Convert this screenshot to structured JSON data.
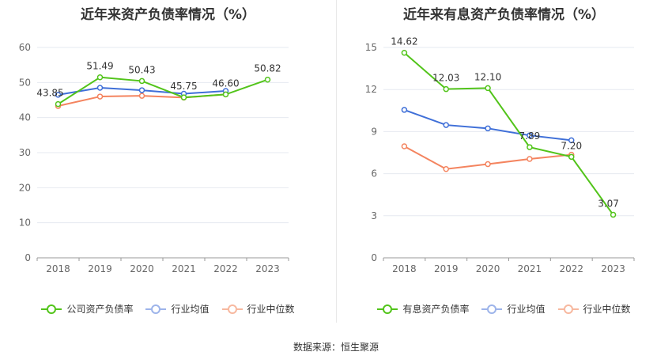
{
  "source": "数据来源：恒生聚源",
  "colors": {
    "company": "#52c41a",
    "avg": "#3f6fd8",
    "median": "#f4845f"
  },
  "chart_data": [
    {
      "type": "line",
      "title": "近年来资产负债率情况（%）",
      "categories": [
        "2018",
        "2019",
        "2020",
        "2021",
        "2022",
        "2023"
      ],
      "yticks": [
        "0",
        "10",
        "20",
        "30",
        "40",
        "50",
        "60"
      ],
      "ylim": [
        0,
        60
      ],
      "series": [
        {
          "name": "公司资产负债率",
          "key": "company",
          "values": [
            43.85,
            51.49,
            50.43,
            45.75,
            46.6,
            50.82
          ],
          "labels": [
            "43.85",
            "51.49",
            "50.43",
            "45.75",
            "46.60",
            "50.82"
          ]
        },
        {
          "name": "行业均值",
          "key": "avg",
          "values": [
            46.5,
            48.5,
            47.8,
            46.8,
            47.6,
            null
          ]
        },
        {
          "name": "行业中位数",
          "key": "median",
          "values": [
            43.3,
            46.0,
            46.2,
            45.7,
            46.6,
            null
          ]
        }
      ]
    },
    {
      "type": "line",
      "title": "近年来有息资产负债率情况（%）",
      "categories": [
        "2018",
        "2019",
        "2020",
        "2021",
        "2022",
        "2023"
      ],
      "yticks": [
        "0",
        "3",
        "6",
        "9",
        "12",
        "15"
      ],
      "ylim": [
        0,
        15
      ],
      "series": [
        {
          "name": "有息资产负债率",
          "key": "company",
          "values": [
            14.62,
            12.03,
            12.1,
            7.89,
            7.2,
            3.07
          ],
          "labels": [
            "14.62",
            "12.03",
            "12.10",
            "7.89",
            "7.20",
            "3.07"
          ]
        },
        {
          "name": "行业均值",
          "key": "avg",
          "values": [
            10.55,
            9.47,
            9.23,
            8.73,
            8.38,
            null
          ]
        },
        {
          "name": "行业中位数",
          "key": "median",
          "values": [
            7.95,
            6.33,
            6.68,
            7.05,
            7.35,
            null
          ]
        }
      ]
    }
  ]
}
